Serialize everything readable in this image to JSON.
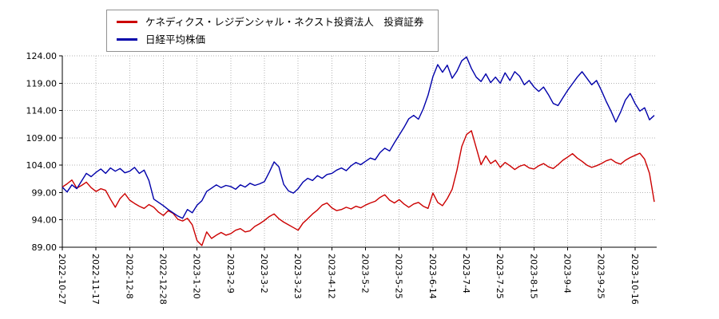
{
  "chart_data": {
    "type": "line",
    "title": "",
    "xlabel": "",
    "ylabel": "",
    "grid": true,
    "legend_position": "top-left",
    "ylim": [
      89,
      124
    ],
    "y_ticks": [
      89,
      94,
      99,
      104,
      109,
      114,
      119,
      124
    ],
    "y_tick_labels": [
      "89.00",
      "94.00",
      "99.00",
      "104.00",
      "109.00",
      "114.00",
      "119.00",
      "124.00"
    ],
    "x_range": [
      0,
      247
    ],
    "x_step": 2,
    "x_tick_positions": [
      0,
      14,
      28,
      42,
      56,
      70,
      84,
      98,
      112,
      126,
      140,
      154,
      168,
      182,
      196,
      210,
      224,
      238
    ],
    "x_tick_labels": [
      "2022-10-27",
      "2022-11-17",
      "2022-12-8",
      "2022-12-28",
      "2023-1-20",
      "2023-2-9",
      "2023-3-2",
      "2023-3-23",
      "2023-4-12",
      "2023-5-2",
      "2023-5-25",
      "2023-6-14",
      "2023-7-4",
      "2023-7-25",
      "2023-8-15",
      "2023-9-4",
      "2023-9-25",
      "2023-10-16"
    ],
    "series": [
      {
        "name": "ケネディクス・レジデンシャル・ネクスト投資法人　投資証券",
        "color": "#cc0000",
        "values": [
          100.0,
          100.6,
          101.3,
          99.8,
          100.3,
          100.9,
          99.9,
          99.2,
          99.7,
          99.4,
          97.8,
          96.3,
          97.9,
          98.8,
          97.6,
          97.0,
          96.5,
          96.1,
          96.8,
          96.3,
          95.4,
          94.8,
          95.7,
          95.2,
          94.1,
          93.8,
          94.3,
          93.1,
          90.2,
          89.3,
          91.8,
          90.6,
          91.2,
          91.7,
          91.2,
          91.5,
          92.1,
          92.4,
          91.8,
          92.0,
          92.8,
          93.3,
          93.9,
          94.6,
          95.1,
          94.2,
          93.6,
          93.1,
          92.6,
          92.1,
          93.4,
          94.2,
          95.1,
          95.8,
          96.7,
          97.1,
          96.2,
          95.7,
          95.9,
          96.3,
          96.0,
          96.5,
          96.2,
          96.7,
          97.1,
          97.4,
          98.1,
          98.6,
          97.6,
          97.1,
          97.7,
          96.9,
          96.3,
          96.9,
          97.2,
          96.5,
          96.1,
          98.9,
          97.2,
          96.6,
          97.9,
          99.6,
          103.1,
          107.4,
          109.6,
          110.3,
          107.2,
          104.1,
          105.7,
          104.3,
          104.9,
          103.6,
          104.5,
          103.9,
          103.2,
          103.8,
          104.1,
          103.5,
          103.3,
          103.9,
          104.3,
          103.7,
          103.4,
          104.1,
          104.9,
          105.5,
          106.1,
          105.3,
          104.7,
          104.0,
          103.6,
          103.9,
          104.3,
          104.8,
          105.1,
          104.5,
          104.2,
          104.9,
          105.4,
          105.8,
          106.2,
          105.1,
          102.5,
          97.3
        ]
      },
      {
        "name": "日経平均株価",
        "color": "#0000aa",
        "values": [
          100.0,
          99.1,
          100.4,
          99.7,
          101.1,
          102.5,
          101.9,
          102.7,
          103.3,
          102.5,
          103.5,
          102.9,
          103.4,
          102.6,
          102.9,
          103.6,
          102.5,
          103.1,
          101.2,
          97.8,
          97.2,
          96.6,
          95.9,
          95.3,
          94.7,
          94.3,
          95.9,
          95.3,
          96.7,
          97.5,
          99.2,
          99.8,
          100.4,
          99.9,
          100.3,
          100.1,
          99.6,
          100.4,
          100.0,
          100.7,
          100.3,
          100.6,
          101.0,
          102.7,
          104.6,
          103.7,
          100.5,
          99.3,
          98.9,
          99.7,
          100.9,
          101.6,
          101.2,
          102.1,
          101.6,
          102.3,
          102.5,
          103.1,
          103.5,
          103.0,
          103.9,
          104.5,
          104.1,
          104.7,
          105.3,
          105.0,
          106.3,
          107.1,
          106.6,
          108.1,
          109.5,
          110.9,
          112.5,
          113.1,
          112.4,
          114.3,
          116.8,
          120.2,
          122.4,
          121.0,
          122.3,
          119.9,
          121.2,
          123.1,
          123.8,
          121.7,
          120.1,
          119.3,
          120.7,
          119.1,
          120.1,
          119.0,
          120.9,
          119.5,
          121.1,
          120.3,
          118.7,
          119.5,
          118.3,
          117.5,
          118.3,
          116.9,
          115.3,
          114.9,
          116.3,
          117.7,
          118.9,
          120.1,
          121.1,
          119.9,
          118.7,
          119.5,
          117.7,
          115.7,
          113.9,
          111.9,
          113.7,
          115.9,
          117.1,
          115.3,
          113.9,
          114.5,
          112.3,
          113.1
        ]
      }
    ]
  }
}
